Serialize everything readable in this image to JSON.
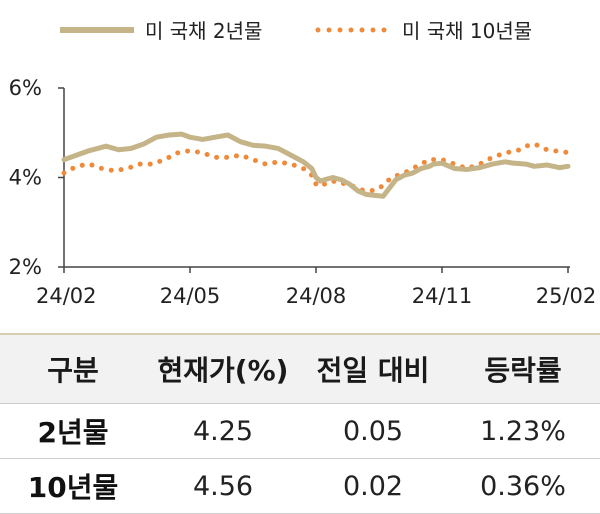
{
  "chart_data": {
    "type": "line",
    "legend": [
      "미 국채 2년물",
      "미 국채 10년물"
    ],
    "legend_position": "top",
    "y_ticks": [
      "6%",
      "4%",
      "2%"
    ],
    "x_ticks": [
      "24/02",
      "24/05",
      "24/08",
      "24/11",
      "25/02"
    ],
    "ylim": [
      2,
      6
    ],
    "x_range": [
      0,
      12
    ],
    "colors": {
      "2y": "#c4b488",
      "10y": "#ee8a3a"
    },
    "series": [
      {
        "name": "미 국채 2년물",
        "style": "solid",
        "x": [
          0,
          0.3,
          0.6,
          0.8,
          1.0,
          1.3,
          1.6,
          1.9,
          2.2,
          2.5,
          2.8,
          3.0,
          3.3,
          3.6,
          3.9,
          4.2,
          4.5,
          4.8,
          5.1,
          5.4,
          5.7,
          5.9,
          6.0,
          6.1,
          6.2,
          6.4,
          6.6,
          6.8,
          7.0,
          7.2,
          7.4,
          7.6,
          7.9,
          8.1,
          8.3,
          8.5,
          8.7,
          8.8,
          9.0,
          9.3,
          9.6,
          9.9,
          10.2,
          10.5,
          10.7,
          11.0,
          11.2,
          11.5,
          11.8,
          12.0
        ],
        "values": [
          4.4,
          4.5,
          4.6,
          4.65,
          4.7,
          4.62,
          4.65,
          4.75,
          4.9,
          4.95,
          4.97,
          4.9,
          4.85,
          4.9,
          4.95,
          4.8,
          4.72,
          4.7,
          4.65,
          4.5,
          4.35,
          4.2,
          4.0,
          3.92,
          3.95,
          4.0,
          3.95,
          3.85,
          3.7,
          3.62,
          3.6,
          3.58,
          3.95,
          4.05,
          4.1,
          4.2,
          4.25,
          4.3,
          4.32,
          4.2,
          4.18,
          4.22,
          4.3,
          4.35,
          4.32,
          4.3,
          4.25,
          4.28,
          4.22,
          4.25
        ]
      },
      {
        "name": "미 국채 10년물",
        "style": "dotted",
        "x": [
          0,
          0.3,
          0.6,
          0.9,
          1.2,
          1.5,
          1.8,
          2.1,
          2.4,
          2.7,
          3.0,
          3.3,
          3.6,
          3.9,
          4.2,
          4.5,
          4.8,
          5.1,
          5.4,
          5.7,
          5.9,
          6.0,
          6.1,
          6.3,
          6.5,
          6.7,
          6.9,
          7.1,
          7.3,
          7.5,
          7.8,
          8.1,
          8.4,
          8.7,
          9.0,
          9.3,
          9.6,
          9.9,
          10.2,
          10.5,
          10.8,
          11.0,
          11.2,
          11.5,
          11.8,
          12.0
        ],
        "values": [
          4.1,
          4.25,
          4.3,
          4.2,
          4.15,
          4.2,
          4.3,
          4.3,
          4.4,
          4.55,
          4.6,
          4.55,
          4.45,
          4.45,
          4.5,
          4.4,
          4.3,
          4.35,
          4.3,
          4.2,
          4.05,
          3.85,
          3.8,
          3.9,
          3.92,
          3.85,
          3.8,
          3.72,
          3.7,
          3.75,
          4.0,
          4.1,
          4.25,
          4.4,
          4.4,
          4.3,
          4.2,
          4.3,
          4.45,
          4.55,
          4.6,
          4.7,
          4.75,
          4.62,
          4.58,
          4.56
        ]
      }
    ]
  },
  "table": {
    "headers": [
      "구분",
      "현재가(%)",
      "전일 대비",
      "등락률"
    ],
    "rows": [
      {
        "label": "2년물",
        "current": "4.25",
        "change": "0.05",
        "rate": "1.23%"
      },
      {
        "label": "10년물",
        "current": "4.56",
        "change": "0.02",
        "rate": "0.36%"
      }
    ]
  }
}
